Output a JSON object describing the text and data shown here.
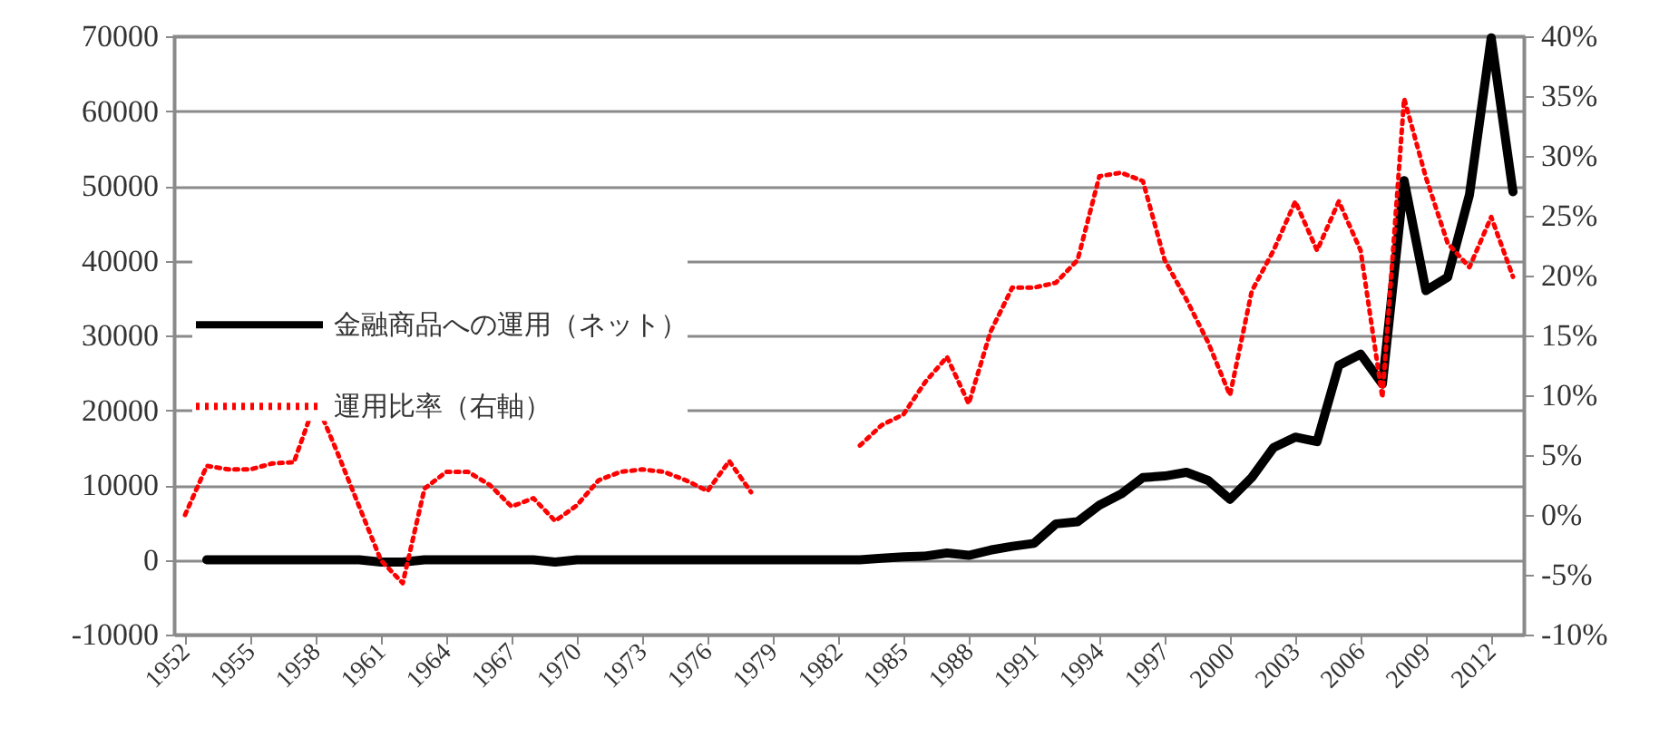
{
  "chart_data": {
    "type": "line",
    "x": [
      1952,
      1953,
      1954,
      1955,
      1956,
      1957,
      1958,
      1959,
      1960,
      1961,
      1962,
      1963,
      1964,
      1965,
      1966,
      1967,
      1968,
      1969,
      1970,
      1971,
      1972,
      1973,
      1974,
      1975,
      1976,
      1977,
      1978,
      1979,
      1980,
      1981,
      1982,
      1983,
      1984,
      1985,
      1986,
      1987,
      1988,
      1989,
      1990,
      1991,
      1992,
      1993,
      1994,
      1995,
      1996,
      1997,
      1998,
      1999,
      2000,
      2001,
      2002,
      2003,
      2004,
      2005,
      2006,
      2007,
      2008,
      2009,
      2010,
      2011,
      2012,
      2013
    ],
    "series": [
      {
        "name": "金融商品への運用（ネット）",
        "color": "#000000",
        "line_style": "solid",
        "values": [
          null,
          0,
          0,
          0,
          0,
          0,
          0,
          0,
          0,
          -300,
          -300,
          0,
          0,
          0,
          0,
          0,
          0,
          -300,
          0,
          0,
          0,
          0,
          0,
          0,
          0,
          0,
          0,
          0,
          0,
          0,
          0,
          0,
          200,
          400,
          500,
          900,
          600,
          1300,
          1800,
          2200,
          4800,
          5100,
          7300,
          8800,
          11000,
          11200,
          11700,
          10600,
          8100,
          11000,
          15000,
          16400,
          15800,
          26000,
          27500,
          23500,
          50700,
          36000,
          37800,
          48800,
          69800,
          49200
        ]
      },
      {
        "name": "運用比率（右軸）",
        "color": "#ff0000",
        "line_style": "dotted",
        "axis": "y2",
        "values": [
          0,
          4.1,
          3.8,
          3.8,
          4.3,
          4.4,
          9.5,
          5.2,
          0.7,
          -3.8,
          -5.7,
          2.2,
          3.6,
          3.6,
          2.5,
          0.7,
          1.4,
          -0.5,
          0.8,
          2.9,
          3.6,
          3.8,
          3.6,
          2.9,
          2.0,
          4.5,
          1.9,
          null,
          null,
          null,
          null,
          5.8,
          7.5,
          8.4,
          11.1,
          13.2,
          9.3,
          15.3,
          19.0,
          19.0,
          19.4,
          21.3,
          28.3,
          28.6,
          27.9,
          21.3,
          18.0,
          14.4,
          10.0,
          18.7,
          22.1,
          26.2,
          22.1,
          26.2,
          22.1,
          9.8,
          34.8,
          28.2,
          22.7,
          20.7,
          24.9,
          19.9
        ]
      }
    ],
    "xlim": [
      1951.5,
      2013.5
    ],
    "xticks": [
      1952,
      1955,
      1958,
      1961,
      1964,
      1967,
      1970,
      1973,
      1976,
      1979,
      1982,
      1985,
      1988,
      1991,
      1994,
      1997,
      2000,
      2003,
      2006,
      2009,
      2012
    ],
    "ylim": [
      -10000,
      70000
    ],
    "yticks": [
      -10000,
      0,
      10000,
      20000,
      30000,
      40000,
      50000,
      60000,
      70000
    ],
    "y2lim": [
      -10,
      40
    ],
    "y2ticks": [
      {
        "value": -10,
        "label": "-10%"
      },
      {
        "value": -5,
        "label": "-5%"
      },
      {
        "value": 0,
        "label": "0%"
      },
      {
        "value": 5,
        "label": "5%"
      },
      {
        "value": 10,
        "label": "10%"
      },
      {
        "value": 15,
        "label": "15%"
      },
      {
        "value": 20,
        "label": "20%"
      },
      {
        "value": 25,
        "label": "25%"
      },
      {
        "value": 30,
        "label": "30%"
      },
      {
        "value": 35,
        "label": "35%"
      },
      {
        "value": 40,
        "label": "40%"
      }
    ],
    "grid": "y",
    "legend": "left"
  }
}
